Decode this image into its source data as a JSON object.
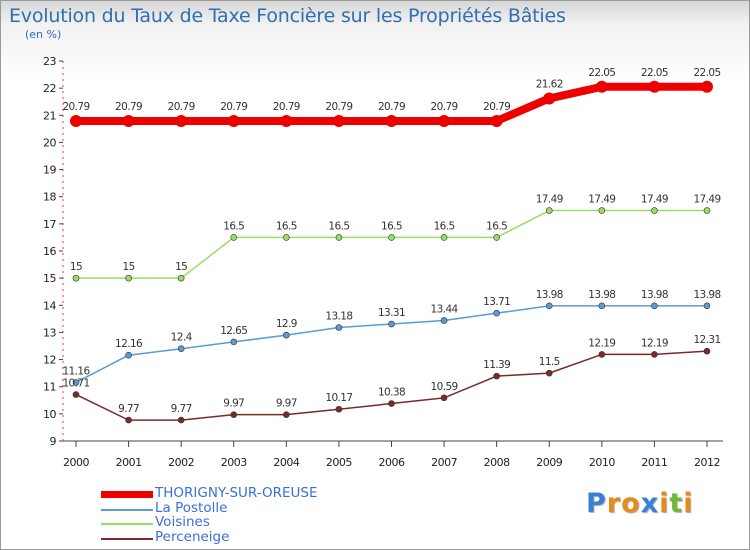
{
  "title": "Evolution du Taux de Taxe Foncière sur les Propriétés Bâties",
  "subtitle": "(en %)",
  "logo": {
    "letters": [
      "P",
      "r",
      "o",
      "x",
      "i",
      "t",
      "i"
    ],
    "colors": [
      "#3a7fd6",
      "#e48b1a",
      "#e48b1a",
      "#3a7fd6",
      "#e48b1a",
      "#6fb83a",
      "#e48b1a"
    ]
  },
  "chart_data": {
    "type": "line",
    "title": "Evolution du Taux de Taxe Foncière sur les Propriétés Bâties",
    "ylabel": "(en %)",
    "xlabel": "",
    "x": [
      "2000",
      "2001",
      "2002",
      "2003",
      "2004",
      "2005",
      "2006",
      "2007",
      "2008",
      "2009",
      "2010",
      "2011",
      "2012"
    ],
    "ylim": [
      9,
      23
    ],
    "yticks": [
      "9",
      "10",
      "11",
      "12",
      "13",
      "14",
      "15",
      "16",
      "17",
      "18",
      "19",
      "20",
      "21",
      "22",
      "23"
    ],
    "grid": false,
    "legend": "bottom-left",
    "series": [
      {
        "name": "THORIGNY-SUR-OREUSE",
        "color": "#ee0000",
        "values": [
          20.79,
          20.79,
          20.79,
          20.79,
          20.79,
          20.79,
          20.79,
          20.79,
          20.79,
          21.62,
          22.05,
          22.05,
          22.05
        ],
        "labels": [
          "20.79",
          "20.79",
          "20.79",
          "20.79",
          "20.79",
          "20.79",
          "20.79",
          "20.79",
          "20.79",
          "21.62",
          "22.05",
          "22.05",
          "22.05"
        ]
      },
      {
        "name": "La Postolle",
        "color": "#5b9bd5",
        "values": [
          11.16,
          12.16,
          12.4,
          12.65,
          12.9,
          13.18,
          13.31,
          13.44,
          13.71,
          13.98,
          13.98,
          13.98,
          13.98
        ],
        "labels": [
          "11.16",
          "12.16",
          "12.4",
          "12.65",
          "12.9",
          "13.18",
          "13.31",
          "13.44",
          "13.71",
          "13.98",
          "13.98",
          "13.98",
          "13.98"
        ]
      },
      {
        "name": "Voisines",
        "color": "#99dd66",
        "values": [
          15,
          15,
          15,
          16.5,
          16.5,
          16.5,
          16.5,
          16.5,
          16.5,
          17.49,
          17.49,
          17.49,
          17.49
        ],
        "labels": [
          "15",
          "15",
          "15",
          "16.5",
          "16.5",
          "16.5",
          "16.5",
          "16.5",
          "16.5",
          "17.49",
          "17.49",
          "17.49",
          "17.49"
        ]
      },
      {
        "name": "Perceneige",
        "color": "#7a2a2a",
        "values": [
          10.71,
          9.77,
          9.77,
          9.97,
          9.97,
          10.17,
          10.38,
          10.59,
          11.39,
          11.5,
          12.19,
          12.19,
          12.31
        ],
        "labels": [
          "10.71",
          "9.77",
          "9.77",
          "9.97",
          "9.97",
          "10.17",
          "10.38",
          "10.59",
          "11.39",
          "11.5",
          "12.19",
          "12.19",
          "12.31"
        ]
      }
    ]
  }
}
